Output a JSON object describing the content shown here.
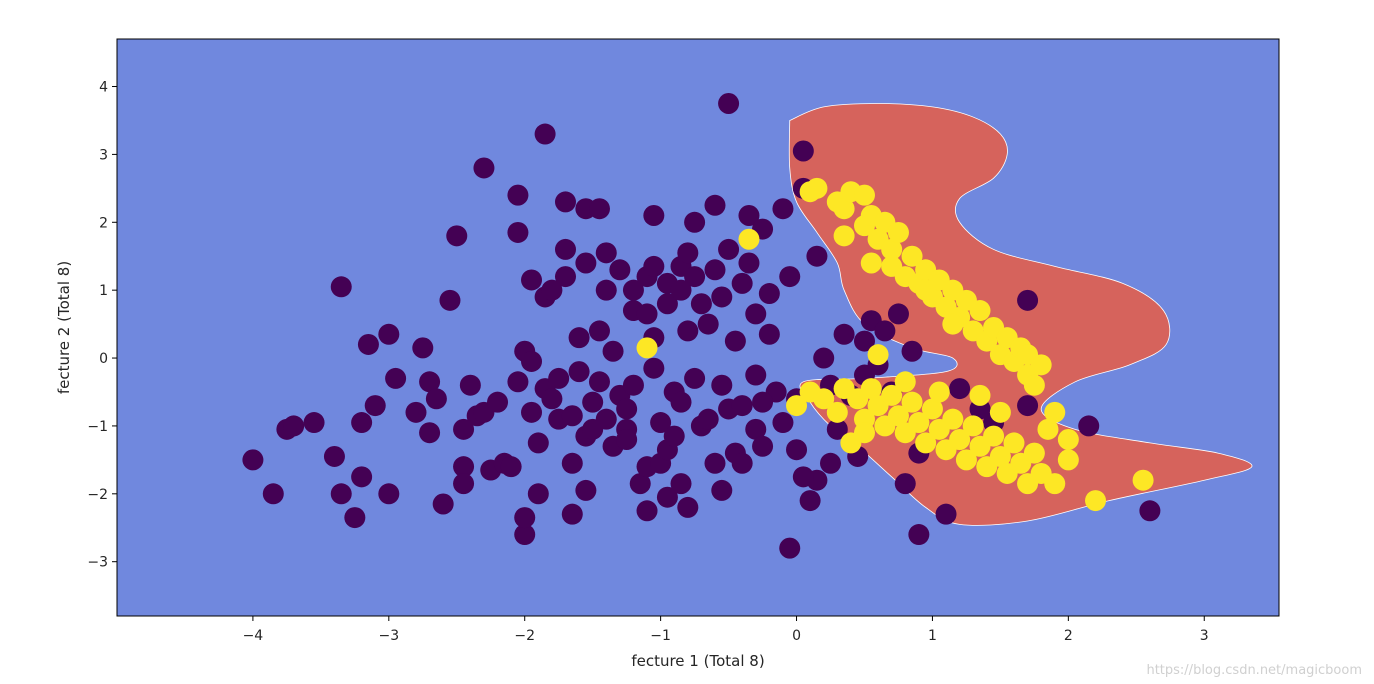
{
  "chart_data": {
    "type": "scatter",
    "title": "",
    "xlabel": "fecture 1 (Total 8)",
    "ylabel": "fecture 2 (Total 8)",
    "xlim": [
      -5.0,
      3.55
    ],
    "ylim": [
      -3.8,
      4.7
    ],
    "xticks": [
      -4,
      -3,
      -2,
      -1,
      0,
      1,
      2,
      3
    ],
    "yticks": [
      -3,
      -2,
      -1,
      0,
      1,
      2,
      3,
      4
    ],
    "grid": false,
    "colors": {
      "background_region": "#7088de",
      "decision_region": "#d6635c",
      "class_0": "#440154",
      "class_1": "#fde725"
    },
    "decision_region": [
      [
        -0.05,
        3.5
      ],
      [
        0.2,
        3.7
      ],
      [
        0.6,
        3.75
      ],
      [
        1.0,
        3.7
      ],
      [
        1.3,
        3.55
      ],
      [
        1.5,
        3.3
      ],
      [
        1.55,
        3.0
      ],
      [
        1.45,
        2.65
      ],
      [
        1.2,
        2.35
      ],
      [
        1.2,
        2.0
      ],
      [
        1.45,
        1.6
      ],
      [
        1.9,
        1.35
      ],
      [
        2.4,
        1.1
      ],
      [
        2.7,
        0.7
      ],
      [
        2.72,
        0.2
      ],
      [
        2.45,
        -0.1
      ],
      [
        2.05,
        -0.35
      ],
      [
        1.8,
        -0.75
      ],
      [
        2.05,
        -1.05
      ],
      [
        2.6,
        -1.25
      ],
      [
        3.1,
        -1.4
      ],
      [
        3.35,
        -1.6
      ],
      [
        3.0,
        -1.8
      ],
      [
        2.3,
        -2.1
      ],
      [
        1.7,
        -2.4
      ],
      [
        1.2,
        -2.45
      ],
      [
        0.95,
        -2.2
      ],
      [
        0.7,
        -1.75
      ],
      [
        0.45,
        -1.3
      ],
      [
        0.25,
        -1.0
      ],
      [
        0.1,
        -0.65
      ],
      [
        0.05,
        -0.35
      ],
      [
        0.5,
        -0.3
      ],
      [
        1.1,
        -0.2
      ],
      [
        1.15,
        0.0
      ],
      [
        0.85,
        0.15
      ],
      [
        0.5,
        0.5
      ],
      [
        0.35,
        1.0
      ],
      [
        0.3,
        1.4
      ],
      [
        0.15,
        1.85
      ],
      [
        0.0,
        2.3
      ],
      [
        -0.05,
        2.8
      ],
      [
        -0.05,
        3.5
      ]
    ],
    "series": [
      {
        "values": [
          [
            -4.0,
            -1.5
          ],
          [
            -3.85,
            -2.0
          ],
          [
            -3.75,
            -1.05
          ],
          [
            -3.7,
            -1.0
          ],
          [
            -3.55,
            -0.95
          ],
          [
            -3.4,
            -1.45
          ],
          [
            -3.35,
            1.05
          ],
          [
            -3.35,
            -2.0
          ],
          [
            -3.25,
            -2.35
          ],
          [
            -3.2,
            -1.75
          ],
          [
            -3.2,
            -0.95
          ],
          [
            -3.15,
            0.2
          ],
          [
            -3.1,
            -0.7
          ],
          [
            -3.0,
            0.35
          ],
          [
            -3.0,
            -2.0
          ],
          [
            -2.95,
            -0.3
          ],
          [
            -2.8,
            -0.8
          ],
          [
            -2.75,
            0.15
          ],
          [
            -2.7,
            -0.35
          ],
          [
            -2.7,
            -1.1
          ],
          [
            -2.65,
            -0.6
          ],
          [
            -2.6,
            -2.15
          ],
          [
            -2.55,
            0.85
          ],
          [
            -2.5,
            1.8
          ],
          [
            -2.45,
            -1.6
          ],
          [
            -2.45,
            -1.85
          ],
          [
            -2.4,
            -0.4
          ],
          [
            -2.35,
            -0.85
          ],
          [
            -2.3,
            2.8
          ],
          [
            -2.3,
            -0.8
          ],
          [
            -2.25,
            -1.65
          ],
          [
            -2.2,
            -0.65
          ],
          [
            -2.15,
            -1.55
          ],
          [
            -2.1,
            -1.6
          ],
          [
            -2.05,
            2.4
          ],
          [
            -2.05,
            1.85
          ],
          [
            -2.0,
            0.1
          ],
          [
            -2.0,
            -2.6
          ],
          [
            -2.0,
            -2.35
          ],
          [
            -1.95,
            1.15
          ],
          [
            -1.95,
            -0.05
          ],
          [
            -1.95,
            -0.8
          ],
          [
            -1.9,
            -2.0
          ],
          [
            -1.9,
            -1.25
          ],
          [
            -1.85,
            3.3
          ],
          [
            -1.85,
            0.9
          ],
          [
            -1.85,
            -0.45
          ],
          [
            -1.8,
            1.0
          ],
          [
            -1.8,
            -0.6
          ],
          [
            -1.75,
            -0.3
          ],
          [
            -1.75,
            -0.9
          ],
          [
            -1.7,
            2.3
          ],
          [
            -1.7,
            1.2
          ],
          [
            -1.7,
            1.6
          ],
          [
            -1.65,
            -0.85
          ],
          [
            -1.65,
            -1.55
          ],
          [
            -1.65,
            -2.3
          ],
          [
            -1.6,
            -0.2
          ],
          [
            -1.6,
            0.3
          ],
          [
            -1.55,
            1.4
          ],
          [
            -1.55,
            2.2
          ],
          [
            -1.55,
            -1.15
          ],
          [
            -1.5,
            -0.65
          ],
          [
            -1.5,
            -1.05
          ],
          [
            -1.45,
            2.2
          ],
          [
            -1.45,
            0.4
          ],
          [
            -1.45,
            -0.35
          ],
          [
            -1.4,
            1.0
          ],
          [
            -1.4,
            1.55
          ],
          [
            -1.4,
            -0.9
          ],
          [
            -1.35,
            -1.3
          ],
          [
            -1.35,
            0.1
          ],
          [
            -1.3,
            1.3
          ],
          [
            -1.3,
            -0.55
          ],
          [
            -1.25,
            -0.75
          ],
          [
            -1.25,
            -1.05
          ],
          [
            -1.2,
            1.0
          ],
          [
            -1.2,
            0.7
          ],
          [
            -1.2,
            -0.4
          ],
          [
            -1.15,
            -1.85
          ],
          [
            -1.1,
            -2.25
          ],
          [
            -1.1,
            0.65
          ],
          [
            -1.1,
            1.2
          ],
          [
            -1.1,
            -1.6
          ],
          [
            -1.05,
            2.1
          ],
          [
            -1.05,
            1.35
          ],
          [
            -1.05,
            0.3
          ],
          [
            -1.05,
            -0.15
          ],
          [
            -1.0,
            -0.95
          ],
          [
            -1.0,
            -1.55
          ],
          [
            -0.95,
            1.1
          ],
          [
            -0.95,
            0.8
          ],
          [
            -0.95,
            -1.35
          ],
          [
            -0.95,
            -2.05
          ],
          [
            -0.9,
            -0.5
          ],
          [
            -0.9,
            -1.15
          ],
          [
            -0.85,
            1.0
          ],
          [
            -0.85,
            1.35
          ],
          [
            -0.85,
            -0.65
          ],
          [
            -0.85,
            -1.85
          ],
          [
            -0.8,
            -2.2
          ],
          [
            -0.8,
            1.55
          ],
          [
            -0.8,
            0.4
          ],
          [
            -0.75,
            2.0
          ],
          [
            -0.75,
            -0.3
          ],
          [
            -0.75,
            1.2
          ],
          [
            -0.7,
            0.8
          ],
          [
            -0.7,
            -1.0
          ],
          [
            -0.65,
            0.5
          ],
          [
            -0.65,
            -0.9
          ],
          [
            -0.6,
            1.3
          ],
          [
            -0.6,
            -1.55
          ],
          [
            -0.6,
            2.25
          ],
          [
            -0.55,
            0.9
          ],
          [
            -0.55,
            -0.4
          ],
          [
            -0.5,
            1.6
          ],
          [
            -0.5,
            -0.75
          ],
          [
            -0.5,
            3.75
          ],
          [
            -0.45,
            0.25
          ],
          [
            -0.45,
            -1.4
          ],
          [
            -0.4,
            1.1
          ],
          [
            -0.4,
            -0.7
          ],
          [
            -0.35,
            1.4
          ],
          [
            -0.35,
            2.1
          ],
          [
            -0.3,
            0.65
          ],
          [
            -0.3,
            -1.05
          ],
          [
            -0.25,
            1.9
          ],
          [
            -0.25,
            -1.3
          ],
          [
            -0.2,
            0.95
          ],
          [
            -0.2,
            0.35
          ],
          [
            -0.15,
            -0.5
          ],
          [
            -0.1,
            2.2
          ],
          [
            -0.1,
            -0.95
          ],
          [
            -0.05,
            1.2
          ],
          [
            -0.05,
            -2.8
          ],
          [
            0.0,
            -1.35
          ],
          [
            0.0,
            -0.6
          ],
          [
            0.05,
            3.05
          ],
          [
            0.05,
            2.5
          ],
          [
            0.1,
            -2.1
          ],
          [
            0.15,
            1.5
          ],
          [
            0.15,
            -1.8
          ],
          [
            0.2,
            0.0
          ],
          [
            0.25,
            -1.55
          ],
          [
            0.25,
            -0.4
          ],
          [
            0.3,
            -1.05
          ],
          [
            0.35,
            0.35
          ],
          [
            0.4,
            -0.55
          ],
          [
            0.45,
            -1.45
          ],
          [
            0.5,
            -0.25
          ],
          [
            0.5,
            0.25
          ],
          [
            0.55,
            0.55
          ],
          [
            0.6,
            -0.1
          ],
          [
            0.65,
            0.4
          ],
          [
            0.7,
            -0.5
          ],
          [
            0.75,
            0.65
          ],
          [
            0.8,
            -1.85
          ],
          [
            0.85,
            0.1
          ],
          [
            0.9,
            -1.4
          ],
          [
            0.9,
            -2.6
          ],
          [
            1.1,
            -2.3
          ],
          [
            1.2,
            -0.45
          ],
          [
            1.35,
            -0.75
          ],
          [
            1.45,
            -0.95
          ],
          [
            1.7,
            -0.7
          ],
          [
            1.7,
            0.85
          ],
          [
            2.15,
            -1.0
          ],
          [
            2.6,
            -2.25
          ],
          [
            -0.25,
            -0.65
          ],
          [
            -0.3,
            -0.25
          ],
          [
            -1.25,
            -1.2
          ],
          [
            -1.55,
            -1.95
          ],
          [
            -2.05,
            -0.35
          ],
          [
            -2.45,
            -1.05
          ],
          [
            -0.55,
            -1.95
          ],
          [
            -0.4,
            -1.55
          ],
          [
            0.05,
            -1.75
          ]
        ]
      },
      {
        "values": [
          [
            0.1,
            2.45
          ],
          [
            0.15,
            2.5
          ],
          [
            0.3,
            2.3
          ],
          [
            0.35,
            2.2
          ],
          [
            0.4,
            2.45
          ],
          [
            0.5,
            2.4
          ],
          [
            0.5,
            1.95
          ],
          [
            0.55,
            2.1
          ],
          [
            0.6,
            1.75
          ],
          [
            0.65,
            2.0
          ],
          [
            0.7,
            1.6
          ],
          [
            0.7,
            1.35
          ],
          [
            0.75,
            1.85
          ],
          [
            0.8,
            1.2
          ],
          [
            0.85,
            1.5
          ],
          [
            0.9,
            1.1
          ],
          [
            0.95,
            1.3
          ],
          [
            1.0,
            0.9
          ],
          [
            1.05,
            1.15
          ],
          [
            1.1,
            0.75
          ],
          [
            1.15,
            1.0
          ],
          [
            1.2,
            0.6
          ],
          [
            1.25,
            0.85
          ],
          [
            1.3,
            0.4
          ],
          [
            1.35,
            0.7
          ],
          [
            1.4,
            0.25
          ],
          [
            1.45,
            0.45
          ],
          [
            1.5,
            0.05
          ],
          [
            1.55,
            0.3
          ],
          [
            1.6,
            -0.05
          ],
          [
            1.65,
            0.15
          ],
          [
            1.7,
            -0.25
          ],
          [
            1.7,
            0.05
          ],
          [
            1.75,
            -0.4
          ],
          [
            1.8,
            -0.1
          ],
          [
            0.0,
            -0.7
          ],
          [
            0.1,
            -0.5
          ],
          [
            0.2,
            -0.6
          ],
          [
            0.3,
            -0.8
          ],
          [
            0.35,
            -0.45
          ],
          [
            0.45,
            -0.6
          ],
          [
            0.5,
            -0.9
          ],
          [
            0.55,
            -0.45
          ],
          [
            0.6,
            -0.7
          ],
          [
            0.65,
            -1.0
          ],
          [
            0.7,
            -0.55
          ],
          [
            0.75,
            -0.85
          ],
          [
            0.8,
            -1.1
          ],
          [
            0.85,
            -0.65
          ],
          [
            0.9,
            -0.95
          ],
          [
            0.95,
            -1.25
          ],
          [
            1.0,
            -0.75
          ],
          [
            1.05,
            -1.05
          ],
          [
            1.1,
            -1.35
          ],
          [
            1.15,
            -0.9
          ],
          [
            1.2,
            -1.2
          ],
          [
            1.25,
            -1.5
          ],
          [
            1.3,
            -1.0
          ],
          [
            1.35,
            -1.3
          ],
          [
            1.4,
            -1.6
          ],
          [
            1.45,
            -1.15
          ],
          [
            1.5,
            -1.45
          ],
          [
            1.55,
            -1.7
          ],
          [
            1.6,
            -1.25
          ],
          [
            1.65,
            -1.55
          ],
          [
            1.7,
            -1.85
          ],
          [
            1.75,
            -1.4
          ],
          [
            1.8,
            -1.7
          ],
          [
            1.85,
            -1.05
          ],
          [
            1.9,
            -1.85
          ],
          [
            2.0,
            -1.5
          ],
          [
            2.0,
            -1.2
          ],
          [
            2.2,
            -2.1
          ],
          [
            2.55,
            -1.8
          ],
          [
            0.6,
            0.05
          ],
          [
            -0.35,
            1.75
          ],
          [
            -1.1,
            0.15
          ],
          [
            0.4,
            -1.25
          ],
          [
            0.5,
            -1.1
          ],
          [
            0.35,
            1.8
          ],
          [
            0.55,
            1.4
          ],
          [
            0.95,
            1.0
          ],
          [
            1.15,
            0.5
          ],
          [
            1.35,
            -0.55
          ],
          [
            1.05,
            -0.5
          ],
          [
            0.8,
            -0.35
          ],
          [
            1.5,
            -0.8
          ],
          [
            1.9,
            -0.8
          ]
        ]
      }
    ]
  },
  "watermark": "https://blog.csdn.net/magicboom"
}
